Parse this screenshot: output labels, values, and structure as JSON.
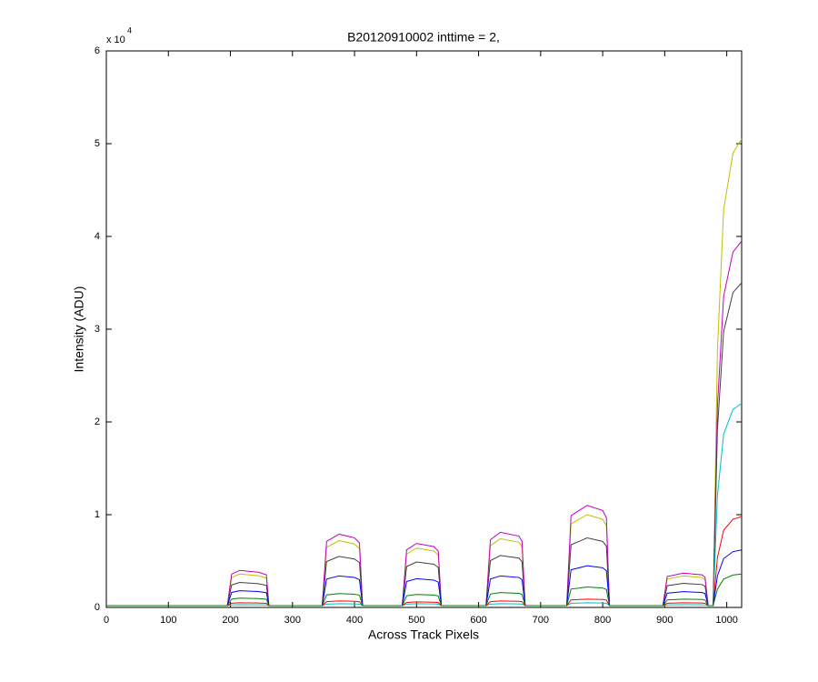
{
  "chart_data": {
    "type": "line",
    "title": "B20120910002 inttime = 2,",
    "xlabel": "Across Track Pixels",
    "ylabel": "Intensity (ADU)",
    "y_multiplier": "x 10",
    "y_multiplier_exp": "4",
    "xlim": [
      0,
      1024
    ],
    "ylim": [
      0,
      60000
    ],
    "xticks": [
      0,
      100,
      200,
      300,
      400,
      500,
      600,
      700,
      800,
      900,
      1000
    ],
    "yticks": [
      {
        "value": 0,
        "label": "0"
      },
      {
        "value": 10000,
        "label": "1"
      },
      {
        "value": 20000,
        "label": "2"
      },
      {
        "value": 30000,
        "label": "3"
      },
      {
        "value": 40000,
        "label": "4"
      },
      {
        "value": 50000,
        "label": "5"
      },
      {
        "value": 60000,
        "label": "6"
      }
    ],
    "grid": false,
    "x": [
      0,
      195,
      202,
      215,
      245,
      258,
      262,
      348,
      355,
      375,
      400,
      408,
      413,
      477,
      484,
      500,
      528,
      535,
      540,
      612,
      619,
      635,
      665,
      670,
      675,
      742,
      749,
      775,
      800,
      806,
      811,
      897,
      904,
      930,
      960,
      965,
      970,
      978,
      985,
      995,
      1010,
      1024
    ],
    "series": [
      {
        "color": "#bfbf00",
        "values": [
          200,
          200,
          3240,
          3600,
          3420,
          3168,
          200,
          200,
          6480,
          7200,
          6840,
          6336,
          200,
          200,
          5760,
          6400,
          6080,
          5632,
          200,
          200,
          6660,
          7400,
          7030,
          6512,
          200,
          200,
          9000,
          10000,
          9500,
          8800,
          200,
          200,
          3060,
          3400,
          3230,
          2992,
          200,
          200,
          27775,
          42925,
          48985,
          50500
        ]
      },
      {
        "color": "#bf00bf",
        "values": [
          200,
          200,
          3600,
          4000,
          3800,
          3520,
          200,
          200,
          7110,
          7900,
          7505,
          6952,
          200,
          200,
          6210,
          6900,
          6555,
          6072,
          200,
          200,
          7290,
          8100,
          7695,
          7128,
          200,
          200,
          9900,
          11000,
          10450,
          9680,
          200,
          200,
          3330,
          3700,
          3515,
          3256,
          200,
          200,
          21725,
          33575,
          38315,
          39500
        ]
      },
      {
        "color": "#404040",
        "values": [
          200,
          200,
          2430,
          2700,
          2565,
          2376,
          200,
          200,
          4950,
          5500,
          5225,
          4840,
          200,
          200,
          4410,
          4900,
          4655,
          4312,
          200,
          200,
          5040,
          5600,
          5320,
          4928,
          200,
          200,
          6750,
          7500,
          7125,
          6600,
          200,
          200,
          2340,
          2600,
          2470,
          2288,
          200,
          200,
          19250,
          29750,
          33950,
          35000
        ]
      },
      {
        "color": "#00bfbf",
        "values": [
          200,
          200,
          270,
          300,
          285,
          264,
          200,
          200,
          360,
          400,
          380,
          352,
          200,
          200,
          360,
          400,
          380,
          352,
          200,
          200,
          360,
          400,
          380,
          352,
          200,
          200,
          450,
          500,
          475,
          440,
          200,
          200,
          270,
          300,
          285,
          264,
          200,
          200,
          12100,
          18700,
          21340,
          22000
        ]
      },
      {
        "color": "#ff0000",
        "values": [
          200,
          200,
          450,
          500,
          475,
          440,
          200,
          200,
          630,
          700,
          665,
          616,
          200,
          200,
          540,
          600,
          570,
          528,
          200,
          200,
          630,
          700,
          665,
          616,
          200,
          200,
          810,
          900,
          855,
          792,
          200,
          200,
          450,
          500,
          475,
          440,
          200,
          200,
          5390,
          8330,
          9506,
          9800
        ]
      },
      {
        "color": "#0000ff",
        "values": [
          200,
          200,
          1620,
          1800,
          1710,
          1584,
          200,
          200,
          3060,
          3400,
          3230,
          2992,
          200,
          200,
          2790,
          3100,
          2945,
          2728,
          200,
          200,
          3060,
          3400,
          3230,
          2992,
          200,
          200,
          4050,
          4500,
          4275,
          3960,
          200,
          200,
          1530,
          1700,
          1615,
          1496,
          200,
          200,
          3410,
          5270,
          6014,
          6200
        ]
      },
      {
        "color": "#008000",
        "values": [
          200,
          200,
          900,
          1000,
          950,
          880,
          200,
          200,
          1350,
          1500,
          1425,
          1320,
          200,
          200,
          1260,
          1400,
          1330,
          1232,
          200,
          200,
          1440,
          1600,
          1520,
          1408,
          200,
          200,
          1980,
          2200,
          2090,
          1936,
          200,
          200,
          810,
          900,
          855,
          792,
          200,
          200,
          1980,
          3060,
          3492,
          3600
        ]
      }
    ]
  }
}
